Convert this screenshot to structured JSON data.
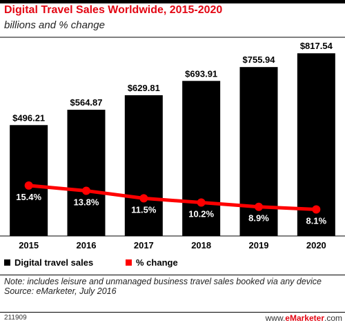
{
  "header": {
    "title": "Digital Travel Sales Worldwide, 2015-2020",
    "subtitle": "billions and % change"
  },
  "colors": {
    "bars": "#000000",
    "line": "#ff0000",
    "title": "#e30613",
    "label_text_on_bar": "#ffffff"
  },
  "chart_data": {
    "type": "bar",
    "categories": [
      "2015",
      "2016",
      "2017",
      "2018",
      "2019",
      "2020"
    ],
    "series": [
      {
        "name": "Digital travel sales",
        "type": "bar",
        "values": [
          496.21,
          564.87,
          629.81,
          693.91,
          755.94,
          817.54
        ],
        "labels": [
          "$496.21",
          "$564.87",
          "$629.81",
          "$693.91",
          "$755.94",
          "$817.54"
        ]
      },
      {
        "name": "% change",
        "type": "line",
        "values": [
          15.4,
          13.8,
          11.5,
          10.2,
          8.9,
          8.1
        ],
        "labels": [
          "15.4%",
          "13.8%",
          "11.5%",
          "10.2%",
          "8.9%",
          "8.1%"
        ]
      }
    ],
    "title": "Digital Travel Sales Worldwide, 2015-2020",
    "subtitle": "billions and % change",
    "xlabel": "",
    "ylabel": "",
    "ylim": [
      0,
      880
    ],
    "y2lim": [
      0,
      60
    ],
    "grid": false,
    "legend": "bottom-left"
  },
  "legend": {
    "items": [
      {
        "label": "Digital travel sales",
        "color": "#000000"
      },
      {
        "label": "% change",
        "color": "#ff0000"
      }
    ]
  },
  "footer": {
    "note": "Note: includes leisure and unmanaged business travel sales booked via any device",
    "source": "Source: eMarketer, July 2016",
    "chart_id": "211909",
    "brand_prefix": "www.",
    "brand_name": "eMarketer",
    "brand_suffix": ".com"
  }
}
